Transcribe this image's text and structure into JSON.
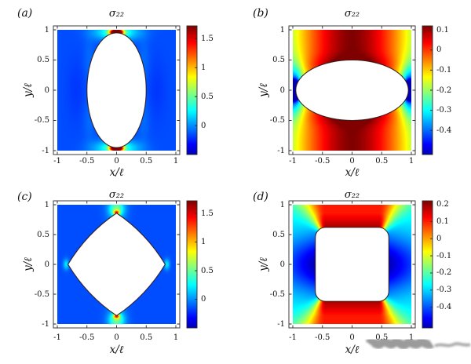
{
  "figure": {
    "background": "#ffffff",
    "description": "2x2 grid of sigma_22 stress heatmaps around holes of different shapes"
  },
  "watermark": {
    "style": "blurred gray scribble overlapping x tick labels of panel d",
    "color": "#8a8a8a"
  },
  "chart_data": [
    {
      "id": "a",
      "type": "heatmap",
      "label": "(a)",
      "title": "σ₂₂",
      "xlabel": "x/ℓ",
      "ylabel": "y/ℓ",
      "x_ticks": [
        -1,
        -0.5,
        0,
        0.5,
        1
      ],
      "x_tick_labels": [
        "-1",
        "-0.5",
        "0",
        "0.5",
        "1"
      ],
      "y_ticks": [
        1,
        0.5,
        0,
        -0.5,
        -1
      ],
      "y_tick_labels": [
        "1",
        "0.5",
        "0",
        "-0.5",
        "-1"
      ],
      "xlim": [
        -1.07,
        1.07
      ],
      "ylim": [
        -1.07,
        1.07
      ],
      "colorbar": {
        "vmin": -0.5,
        "vmax": 1.72,
        "ticks": [
          1.5,
          1,
          0.5,
          0
        ],
        "tick_labels": [
          "1.5",
          "1",
          "0.5",
          "0"
        ]
      },
      "hole": {
        "shape": "ellipse",
        "rx": 0.5,
        "ry": 0.95
      },
      "field": {
        "model": "blobs",
        "base": -0.15,
        "blobs": [
          {
            "x": 0,
            "y": 0.96,
            "a": 2.6,
            "sx": 0.1,
            "sy": 0.05
          },
          {
            "x": 0,
            "y": 0.96,
            "a": 0.6,
            "sx": 0.35,
            "sy": 0.13
          },
          {
            "x": 0,
            "y": -0.96,
            "a": 2.6,
            "sx": 0.1,
            "sy": 0.05
          },
          {
            "x": 0,
            "y": -0.96,
            "a": 0.6,
            "sx": 0.35,
            "sy": 0.13
          },
          {
            "x": 0.46,
            "y": 0.5,
            "a": 0.07,
            "sx": 0.1,
            "sy": 0.4
          },
          {
            "x": -0.46,
            "y": 0.5,
            "a": 0.07,
            "sx": 0.1,
            "sy": 0.4
          },
          {
            "x": 0.46,
            "y": -0.5,
            "a": 0.07,
            "sx": 0.1,
            "sy": 0.4
          },
          {
            "x": -0.46,
            "y": -0.5,
            "a": 0.07,
            "sx": 0.1,
            "sy": 0.4
          },
          {
            "x": 0.68,
            "y": 0,
            "a": -0.05,
            "sx": 0.16,
            "sy": 0.5
          },
          {
            "x": -0.68,
            "y": 0,
            "a": -0.05,
            "sx": 0.16,
            "sy": 0.5
          }
        ]
      },
      "note": "vertical elliptic hole; red stress concentration at top and bottom tips on blue background"
    },
    {
      "id": "b",
      "type": "heatmap",
      "label": "(b)",
      "title": "σ₂₂",
      "xlabel": "x/ℓ",
      "ylabel": "y/ℓ",
      "x_ticks": [
        -1,
        -0.5,
        0,
        0.5,
        1
      ],
      "x_tick_labels": [
        "-1",
        "-0.5",
        "0",
        "0.5",
        "1"
      ],
      "y_ticks": [
        1,
        0.5,
        0,
        -0.5,
        -1
      ],
      "y_tick_labels": [
        "1",
        "0.5",
        "0",
        "-0.5",
        "-1"
      ],
      "xlim": [
        -1.07,
        1.07
      ],
      "ylim": [
        -1.07,
        1.07
      ],
      "colorbar": {
        "vmin": -0.52,
        "vmax": 0.12,
        "ticks": [
          0.1,
          0,
          -0.1,
          -0.2,
          -0.3,
          -0.4
        ],
        "tick_labels": [
          "0.1",
          "0",
          "-0.1",
          "-0.2",
          "-0.3",
          "-0.4"
        ]
      },
      "hole": {
        "shape": "ellipse",
        "rx": 0.95,
        "ry": 0.5
      },
      "field": {
        "model": "blobs",
        "base": 0.12,
        "edge": {
          "amp": -0.29,
          "p": 1.6
        },
        "blobs": [
          {
            "x": 0.97,
            "y": 0,
            "a": -0.95,
            "sx": 0.07,
            "sy": 0.12
          },
          {
            "x": 0.97,
            "y": 0,
            "a": -0.3,
            "sx": 0.17,
            "sy": 0.38
          },
          {
            "x": -0.97,
            "y": 0,
            "a": -0.95,
            "sx": 0.07,
            "sy": 0.12
          },
          {
            "x": -0.97,
            "y": 0,
            "a": -0.3,
            "sx": 0.17,
            "sy": 0.38
          },
          {
            "x": 0,
            "y": 0.42,
            "a": 0.07,
            "sx": 0.6,
            "sy": 0.15
          },
          {
            "x": 0,
            "y": -0.42,
            "a": 0.07,
            "sx": 0.6,
            "sy": 0.15
          }
        ]
      },
      "note": "horizontal elliptic hole; blue compression at left/right tips, dark red above/below, yellow toward side edges"
    },
    {
      "id": "c",
      "type": "heatmap",
      "label": "(c)",
      "title": "σ₂₂",
      "xlabel": "x/ℓ",
      "ylabel": "y/ℓ",
      "x_ticks": [
        -1,
        -0.5,
        0,
        0.5,
        1
      ],
      "x_tick_labels": [
        "-1",
        "-0.5",
        "0",
        "0.5",
        "1"
      ],
      "y_ticks": [
        1,
        0.5,
        0,
        -0.5,
        -1
      ],
      "y_tick_labels": [
        "1",
        "0.5",
        "0",
        "-0.5",
        "-1"
      ],
      "xlim": [
        -1.07,
        1.07
      ],
      "ylim": [
        -1.07,
        1.07
      ],
      "colorbar": {
        "vmin": -0.5,
        "vmax": 1.72,
        "ticks": [
          1.5,
          1,
          0.5,
          0
        ],
        "tick_labels": [
          "1.5",
          "1",
          "0.5",
          "0"
        ]
      },
      "hole": {
        "shape": "diamond",
        "a": 0.82,
        "b": 0.86,
        "bulge": 0.22
      },
      "field": {
        "model": "blobs",
        "base": -0.15,
        "blobs": [
          {
            "x": 0,
            "y": 0.87,
            "a": 1.0,
            "sx": 0.05,
            "sy": 0.035
          },
          {
            "x": 0,
            "y": 0.92,
            "a": 0.45,
            "sx": 0.12,
            "sy": 0.11
          },
          {
            "x": 0,
            "y": 1.05,
            "a": 0.3,
            "sx": 0.16,
            "sy": 0.4
          },
          {
            "x": 0,
            "y": -0.87,
            "a": 1.0,
            "sx": 0.05,
            "sy": 0.035
          },
          {
            "x": 0,
            "y": -0.92,
            "a": 0.45,
            "sx": 0.12,
            "sy": 0.11
          },
          {
            "x": 0,
            "y": -1.05,
            "a": 0.3,
            "sx": 0.16,
            "sy": 0.4
          },
          {
            "x": 0.85,
            "y": 0,
            "a": 0.35,
            "sx": 0.05,
            "sy": 0.09
          },
          {
            "x": -0.85,
            "y": 0,
            "a": 0.35,
            "sx": 0.05,
            "sy": 0.09
          }
        ]
      },
      "note": "diamond hole; yellow-green concentration plumes at top and bottom vertices on blue background"
    },
    {
      "id": "d",
      "type": "heatmap",
      "label": "(d)",
      "title": "σ₂₂",
      "xlabel": "x/ℓ",
      "ylabel": "y/ℓ",
      "x_ticks": [
        -1,
        -0.5,
        0,
        0.5,
        1
      ],
      "x_tick_labels": [
        "-1",
        "-0.5",
        "0",
        "0.5",
        "1"
      ],
      "y_ticks": [
        1,
        0.5,
        0,
        -0.5,
        -1
      ],
      "y_tick_labels": [
        "1",
        "0.5",
        "0",
        "-0.5",
        "-1"
      ],
      "xlim": [
        -1.07,
        1.07
      ],
      "ylim": [
        -1.07,
        1.07
      ],
      "colorbar": {
        "vmin": -0.52,
        "vmax": 0.22,
        "ticks": [
          0.2,
          0.1,
          0,
          -0.1,
          -0.2,
          -0.3,
          -0.4
        ],
        "tick_labels": [
          "0.2",
          "0.1",
          "0",
          "-0.1",
          "-0.2",
          "-0.3",
          "-0.4"
        ]
      },
      "hole": {
        "shape": "roundsquare",
        "s": 0.62,
        "r": 0.17
      },
      "field": {
        "model": "quadrant",
        "c": 0.45,
        "r": 0.17,
        "top0": 0.19,
        "top1": 0.105,
        "Lt": 0.24,
        "side0": -0.52,
        "side1": -0.38,
        "L": 0.5,
        "cyan": -0.27,
        "ydecay": 0.48,
        "pow": 5
      },
      "note": "rounded-square hole; red above/below, deep blue lobes at left/right faces, cyan corners with yellow diagonal rays"
    }
  ]
}
